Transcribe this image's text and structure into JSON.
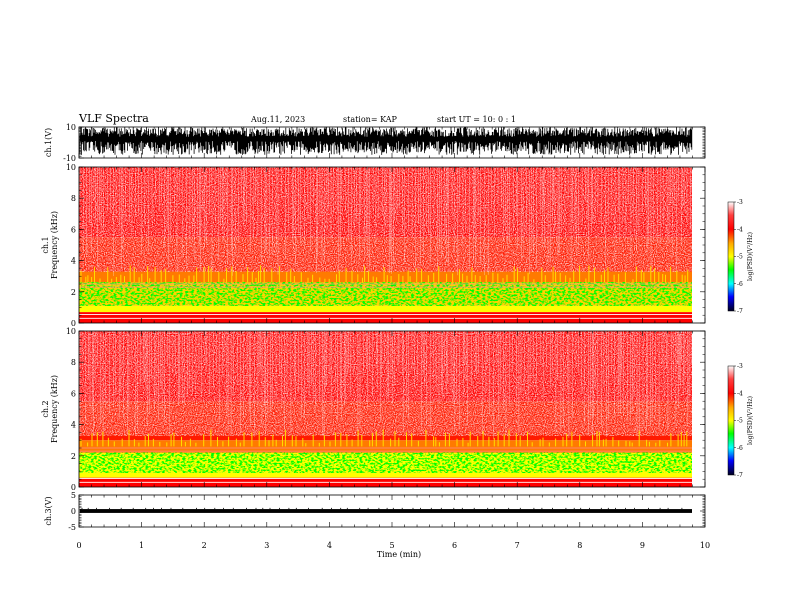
{
  "header": {
    "title": "VLF Spectra",
    "date": "Aug.11, 2023",
    "station": "station= KAP",
    "start": "start  UT =   10: 0  : 1"
  },
  "colors": {
    "spectrogram_high": "#ff0000",
    "spectrogram_mid": "#ffff00",
    "spectrogram_low": "#00ff00",
    "background": "#ffffff",
    "trace": "#000000"
  },
  "chart_data": [
    {
      "type": "line",
      "panel": "ch1-waveform",
      "ylabel": "ch.1(V)",
      "ylim": [
        -10,
        10
      ],
      "yticks": [
        "10",
        "-10"
      ],
      "x": [
        0,
        9.8
      ],
      "series": [
        {
          "values_range": [
            -8,
            10
          ]
        }
      ]
    },
    {
      "type": "heatmap",
      "panel": "ch1-spectrogram",
      "ylabel_line1": "ch.1",
      "ylabel_line2": "Frequency  (kHz)",
      "ylim": [
        0,
        10
      ],
      "yticks": [
        "0",
        "2",
        "4",
        "6",
        "8",
        "10"
      ],
      "x": [
        0,
        9.8
      ],
      "bands_khz": [
        {
          "from": 0,
          "to": 0.7,
          "level": -3
        },
        {
          "from": 0.7,
          "to": 1.1,
          "level": -5
        },
        {
          "from": 1.1,
          "to": 2.6,
          "level": -4.5
        },
        {
          "from": 2.6,
          "to": 3.3,
          "level": -4
        },
        {
          "from": 3.3,
          "to": 5.5,
          "level": -3.5
        },
        {
          "from": 5.5,
          "to": 10,
          "level": -3
        }
      ],
      "colorbar": {
        "label": "log(PSD)(V²/Hz)",
        "ticks": [
          "-3",
          "-4",
          "-5",
          "-6",
          "-7"
        ],
        "range": [
          -7,
          -3
        ]
      }
    },
    {
      "type": "heatmap",
      "panel": "ch2-spectrogram",
      "ylabel_line1": "ch.2",
      "ylabel_line2": "Frequency  (kHz)",
      "ylim": [
        0,
        10
      ],
      "yticks": [
        "0",
        "2",
        "4",
        "6",
        "8",
        "10"
      ],
      "x": [
        0,
        9.8
      ],
      "bands_khz": [
        {
          "from": 0,
          "to": 0.6,
          "level": -3
        },
        {
          "from": 0.6,
          "to": 0.9,
          "level": -5
        },
        {
          "from": 0.9,
          "to": 2.2,
          "level": -5
        },
        {
          "from": 2.2,
          "to": 3.0,
          "level": -4
        },
        {
          "from": 3.0,
          "to": 5.5,
          "level": -3.5
        },
        {
          "from": 5.5,
          "to": 10,
          "level": -3
        }
      ],
      "colorbar": {
        "label": "log(PSD)(V²/Hz)",
        "ticks": [
          "-3",
          "-4",
          "-5",
          "-6",
          "-7"
        ],
        "range": [
          -7,
          -3
        ]
      }
    },
    {
      "type": "line",
      "panel": "ch3-waveform",
      "ylabel": "ch.3(V)",
      "ylim": [
        -5,
        5
      ],
      "yticks": [
        "5",
        "0",
        "-5"
      ],
      "x": [
        0,
        9.8
      ],
      "series": [
        {
          "values_range": [
            -0.6,
            0.6
          ]
        }
      ]
    }
  ],
  "xaxis": {
    "label": "Time  (min)",
    "ticks": [
      "0",
      "1",
      "2",
      "3",
      "4",
      "5",
      "6",
      "7",
      "8",
      "9",
      "10"
    ],
    "range": [
      0,
      10
    ]
  }
}
